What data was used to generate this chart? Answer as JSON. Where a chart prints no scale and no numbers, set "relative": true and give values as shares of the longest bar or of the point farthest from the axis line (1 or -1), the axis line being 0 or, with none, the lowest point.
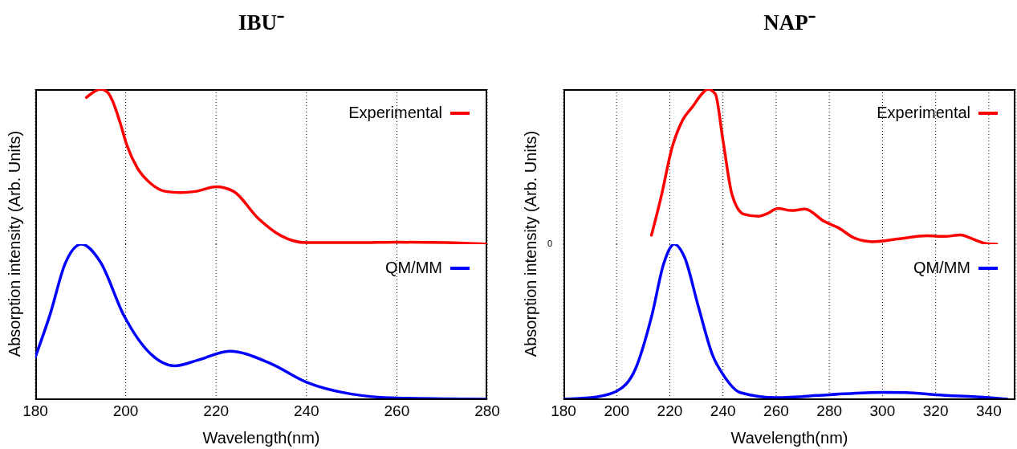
{
  "chart_data": [
    {
      "type": "line",
      "title": "IBU⁻",
      "ylabel": "Absorption intensity (Arb. Units)",
      "relative": true,
      "xlim": [
        180,
        280
      ],
      "xticks": [
        180,
        200,
        220,
        240,
        260,
        280
      ],
      "tick_labels": false,
      "grid": "x",
      "legend": "top right",
      "x": [
        191.3,
        193.1,
        194.4,
        196.0,
        197.0,
        198.7,
        200.3,
        202.6,
        205.6,
        208.9,
        212.1,
        215.4,
        220,
        223.9,
        229.2,
        234.4,
        240,
        251.3,
        260,
        271,
        280
      ],
      "series": [
        {
          "name": "Experimental",
          "color": "#ff0000",
          "values": [
            0.946,
            0.985,
            1.0,
            0.98,
            0.93,
            0.79,
            0.635,
            0.49,
            0.39,
            0.34,
            0.333,
            0.34,
            0.37,
            0.34,
            0.17,
            0.054,
            0.01,
            0.01,
            0.013,
            0.01,
            0
          ]
        }
      ]
    },
    {
      "type": "line",
      "xlabel": "Wavelength(nm)",
      "relative": true,
      "xlim": [
        180,
        280
      ],
      "xticks": [
        180,
        200,
        220,
        240,
        260,
        280
      ],
      "tick_labels": "x",
      "grid": "x",
      "legend": "top right",
      "x": [
        180,
        183.3,
        186.6,
        190.2,
        194.4,
        199.6,
        205.6,
        210.8,
        216.1,
        223,
        231.8,
        240,
        250,
        260,
        280
      ],
      "series": [
        {
          "name": "QM/MM",
          "color": "#0000ff",
          "values": [
            0.272,
            0.55,
            0.875,
            1.0,
            0.885,
            0.54,
            0.29,
            0.215,
            0.253,
            0.31,
            0.234,
            0.11,
            0.033,
            0.008,
            0
          ]
        }
      ]
    },
    {
      "type": "line",
      "title": "NAP⁻",
      "ylabel": "Absorption intensity (Arb. Units)",
      "relative": true,
      "xlim": [
        180,
        350
      ],
      "xticks": [
        180,
        200,
        220,
        240,
        260,
        280,
        300,
        320,
        340
      ],
      "tick_labels": false,
      "grid": "x",
      "legend": "top right",
      "annotations": [
        "0"
      ],
      "x": [
        213.1,
        216.8,
        220.8,
        224.8,
        228.7,
        232.1,
        234.3,
        237.1,
        240,
        243.4,
        247.8,
        253.5,
        256.7,
        260.7,
        265.8,
        270.8,
        278.2,
        283.3,
        289.5,
        296.3,
        306.4,
        316.6,
        323.3,
        329.5,
        332.3,
        339,
        343
      ],
      "series": [
        {
          "name": "Experimental",
          "color": "#ff0000",
          "values": [
            0.058,
            0.31,
            0.62,
            0.8,
            0.89,
            0.97,
            1.0,
            0.97,
            0.67,
            0.32,
            0.194,
            0.18,
            0.198,
            0.23,
            0.217,
            0.227,
            0.146,
            0.107,
            0.039,
            0.016,
            0.035,
            0.054,
            0.05,
            0.06,
            0.045,
            0.004,
            0
          ]
        }
      ]
    },
    {
      "type": "line",
      "xlabel": "Wavelength(nm)",
      "relative": true,
      "xlim": [
        180,
        350
      ],
      "xticks": [
        180,
        200,
        220,
        240,
        260,
        280,
        300,
        320,
        340
      ],
      "tick_labels": "x",
      "grid": "x",
      "legend": "top right",
      "x": [
        180,
        190.4,
        200,
        207.1,
        213.3,
        217.7,
        221.7,
        225.6,
        230.7,
        236.3,
        240,
        246.5,
        260,
        280,
        300,
        308.7,
        320,
        340,
        347
      ],
      "series": [
        {
          "name": "QM/MM",
          "color": "#0000ff",
          "values": [
            0,
            0.01,
            0.052,
            0.197,
            0.545,
            0.874,
            1.0,
            0.913,
            0.6,
            0.275,
            0.16,
            0.043,
            0.01,
            0.029,
            0.044,
            0.043,
            0.029,
            0.01,
            0
          ]
        }
      ]
    }
  ]
}
